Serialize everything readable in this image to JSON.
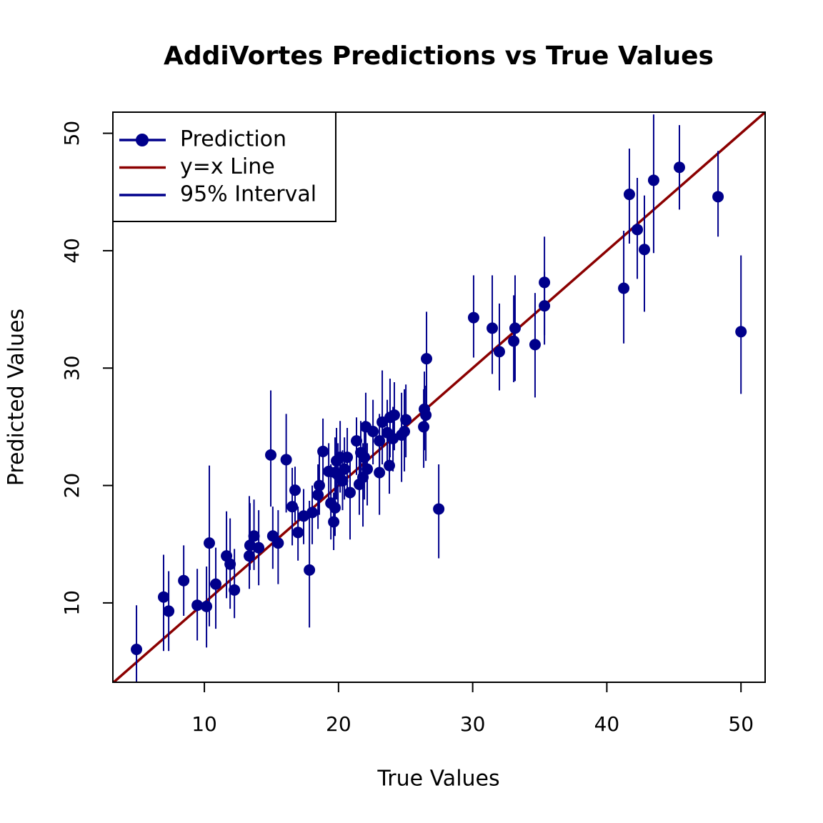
{
  "chart_data": {
    "type": "scatter",
    "title": "AddiVortes Predictions vs True Values",
    "x_label": "True Values",
    "y_label": "Predicted Values",
    "xlim": [
      3.18,
      51.8
    ],
    "ylim": [
      3.24,
      51.8
    ],
    "xticks": [
      10,
      20,
      30,
      40,
      50
    ],
    "yticks": [
      10,
      20,
      30,
      40,
      50
    ],
    "legend": "topleft",
    "reference_line": {
      "name": "y=x Line",
      "color": "#8b0000"
    },
    "series": [
      {
        "name": "Prediction",
        "color": "#00008b",
        "interval": {
          "name": "95% Interval",
          "color": "#00008b"
        },
        "x": [
          4.94,
          6.96,
          7.34,
          8.46,
          9.47,
          10.16,
          10.37,
          10.85,
          11.65,
          11.92,
          12.24,
          13.35,
          13.4,
          13.7,
          14.05,
          14.95,
          15.1,
          15.5,
          16.1,
          16.55,
          16.76,
          16.98,
          17.4,
          17.83,
          18.04,
          18.47,
          18.57,
          18.84,
          19.27,
          19.43,
          19.64,
          19.74,
          19.85,
          19.74,
          19.96,
          20.12,
          20.3,
          20.44,
          20.65,
          20.86,
          21.34,
          21.55,
          21.66,
          21.82,
          21.93,
          22.03,
          22.14,
          22.57,
          23.05,
          23.05,
          23.26,
          23.63,
          23.79,
          23.84,
          24.06,
          24.16,
          24.7,
          24.91,
          25.02,
          26.4,
          26.35,
          26.51,
          26.56,
          27.47,
          30.07,
          31.46,
          31.99,
          33.06,
          33.16,
          34.65,
          35.35,
          35.35,
          41.26,
          41.68,
          42.27,
          42.8,
          43.49,
          45.41,
          48.29,
          50.0
        ],
        "values": [
          6.04,
          10.5,
          9.3,
          11.9,
          9.8,
          9.7,
          15.1,
          11.6,
          14.0,
          13.3,
          11.1,
          14.0,
          14.9,
          15.7,
          14.7,
          22.6,
          15.7,
          15.1,
          22.2,
          18.2,
          19.6,
          16.0,
          17.4,
          12.8,
          17.7,
          19.2,
          20.0,
          22.9,
          21.2,
          18.5,
          16.9,
          21.1,
          22.1,
          18.1,
          20.9,
          22.4,
          20.4,
          21.4,
          22.4,
          19.4,
          23.8,
          20.1,
          22.8,
          20.7,
          22.4,
          25.0,
          21.4,
          24.6,
          21.1,
          23.8,
          25.4,
          24.5,
          21.7,
          25.8,
          24.0,
          26.0,
          24.3,
          24.6,
          25.6,
          26.5,
          25.0,
          26.0,
          30.8,
          18.0,
          34.3,
          33.4,
          31.4,
          32.3,
          33.4,
          32.0,
          35.3,
          37.3,
          36.8,
          44.8,
          41.8,
          40.1,
          46.0,
          47.1,
          44.6,
          33.1
        ],
        "lower": [
          3.0,
          5.9,
          5.9,
          8.9,
          6.8,
          6.2,
          8.0,
          7.8,
          10.4,
          9.5,
          8.7,
          11.2,
          12.8,
          12.8,
          11.5,
          18.2,
          12.9,
          11.6,
          17.7,
          14.9,
          16.9,
          13.6,
          15.0,
          7.9,
          15.0,
          16.3,
          17.5,
          19.9,
          18.8,
          15.4,
          14.5,
          18.0,
          18.8,
          15.7,
          18.2,
          19.4,
          17.9,
          18.8,
          19.4,
          15.4,
          20.9,
          17.5,
          20.0,
          16.5,
          18.8,
          21.8,
          18.3,
          21.8,
          17.5,
          20.6,
          21.8,
          21.8,
          19.3,
          22.4,
          21.2,
          23.0,
          20.3,
          21.2,
          22.4,
          23.0,
          21.5,
          22.1,
          26.7,
          13.8,
          30.9,
          29.5,
          28.1,
          28.8,
          28.9,
          27.5,
          32.0,
          32.8,
          32.1,
          40.6,
          37.6,
          34.8,
          39.8,
          43.5,
          41.2,
          27.8
        ],
        "upper": [
          9.8,
          14.1,
          12.7,
          14.9,
          12.9,
          13.1,
          21.7,
          14.7,
          17.8,
          17.2,
          14.6,
          19.1,
          18.5,
          18.8,
          17.9,
          28.1,
          18.2,
          17.9,
          26.1,
          21.5,
          21.6,
          18.2,
          19.7,
          18.7,
          20.0,
          21.8,
          22.6,
          25.7,
          23.6,
          21.8,
          19.4,
          24.1,
          24.9,
          20.8,
          23.6,
          25.5,
          23.0,
          24.1,
          24.9,
          22.4,
          25.8,
          22.4,
          25.5,
          23.6,
          25.5,
          27.9,
          23.6,
          27.3,
          24.2,
          26.1,
          29.8,
          27.3,
          24.9,
          29.1,
          26.7,
          28.8,
          27.9,
          28.2,
          28.6,
          29.7,
          28.2,
          28.5,
          34.8,
          21.8,
          37.9,
          37.9,
          35.5,
          36.2,
          37.9,
          36.4,
          38.2,
          41.2,
          41.7,
          48.7,
          46.2,
          44.7,
          51.6,
          50.7,
          48.5,
          39.6
        ]
      }
    ]
  }
}
